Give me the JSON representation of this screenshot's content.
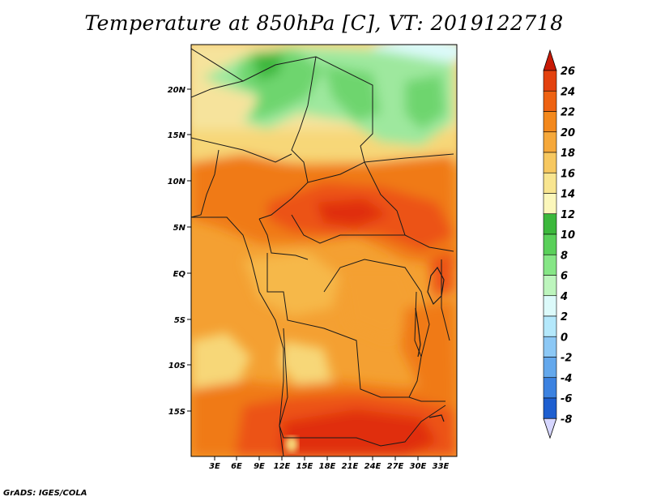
{
  "title": "Temperature at 850hPa [C], VT: 2019122718",
  "credit": "GrADS: IGES/COLA",
  "lat_labels": [
    "20N",
    "15N",
    "10N",
    "5N",
    "EQ",
    "5S",
    "10S",
    "15S"
  ],
  "lon_labels": [
    "3E",
    "6E",
    "9E",
    "12E",
    "15E",
    "18E",
    "21E",
    "24E",
    "27E",
    "30E",
    "33E"
  ],
  "colorbar": {
    "labels": [
      "26",
      "24",
      "22",
      "20",
      "18",
      "16",
      "14",
      "12",
      "10",
      "8",
      "6",
      "4",
      "2",
      "0",
      "-2",
      "-4",
      "-6",
      "-8"
    ],
    "colors": [
      "#d42d0b",
      "#e3410e",
      "#ee6212",
      "#f3881c",
      "#f6a83a",
      "#f7c860",
      "#f8e590",
      "#fbf7bb",
      "#3cb83c",
      "#5ad05a",
      "#86e686",
      "#bdf5bd",
      "#dcfafa",
      "#b4e8fb",
      "#8cc8f5",
      "#64a8ec",
      "#3c82e0",
      "#1e5fd0",
      "#0a3fb8",
      "#081f88"
    ],
    "top_arrow_color": "#c81a06",
    "bottom_arrow_color": "#d6d6ff"
  },
  "map": {
    "extent": {
      "lon": [
        0,
        35
      ],
      "lat": [
        -20,
        25
      ]
    },
    "palette": {
      "hot": "#e02f0d",
      "warm_red": "#ec5312",
      "orange": "#f07a18",
      "light_orange": "#f4a032",
      "pale_orange": "#f6b84a",
      "yellow": "#f7d778",
      "green_dark": "#3cb83c",
      "green": "#6ed56e",
      "green_light": "#9ee89e",
      "cyan_light": "#dcfafa"
    }
  }
}
